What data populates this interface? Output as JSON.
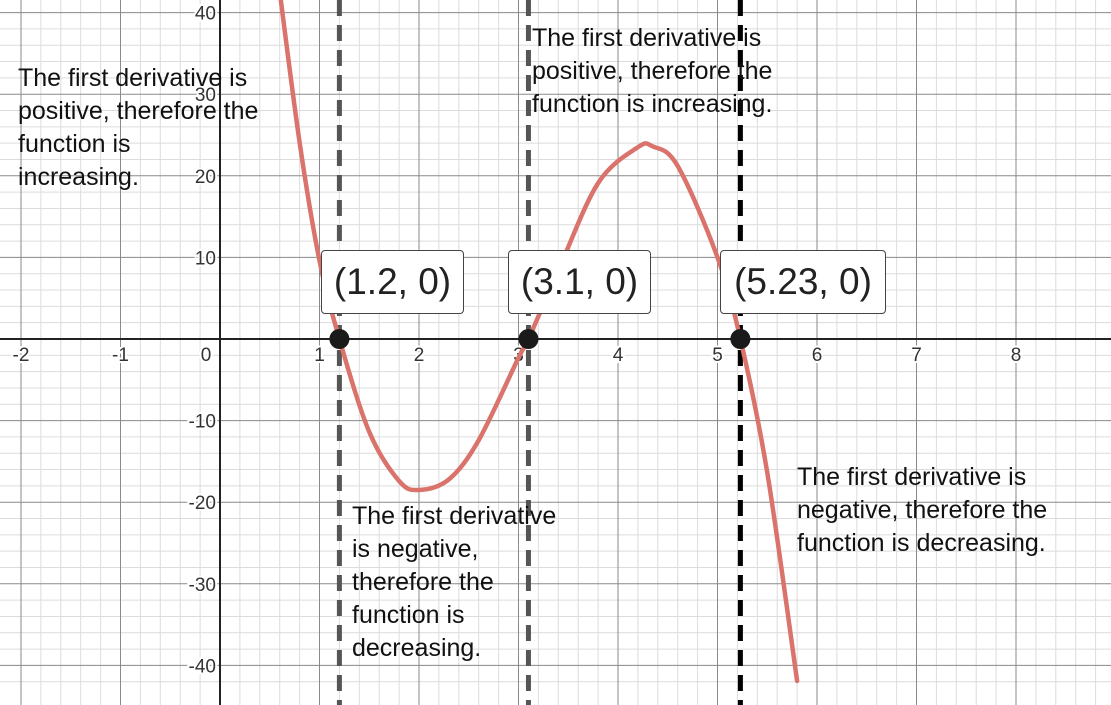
{
  "chart_data": {
    "type": "line",
    "title": "",
    "xlabel": "",
    "ylabel": "",
    "xlim": [
      -2.1,
      8.9
    ],
    "ylim": [
      -43,
      41
    ],
    "x_ticks": [
      "-2",
      "-1",
      "0",
      "1",
      "2",
      "3",
      "4",
      "5",
      "6",
      "7",
      "8"
    ],
    "y_ticks": [
      "40",
      "30",
      "20",
      "10",
      "-10",
      "-20",
      "-30",
      "-40"
    ],
    "grid": true,
    "series": [
      {
        "color": "#d9736c",
        "x": [
          0.6,
          0.8,
          1.0,
          1.2,
          1.5,
          1.8,
          2.0,
          2.3,
          2.6,
          3.0,
          3.1,
          3.4,
          3.8,
          4.2,
          4.35,
          4.6,
          5.0,
          5.23,
          5.5,
          5.8
        ],
        "y": [
          42.6,
          24.1,
          9.6,
          0,
          -11.4,
          -17.4,
          -18.5,
          -17.2,
          -12.4,
          -2.3,
          0,
          8.4,
          19.1,
          23.5,
          23.6,
          21.2,
          10.0,
          0,
          -16.4,
          -41.9
        ]
      }
    ],
    "vertical_lines": [
      {
        "x": 1.2,
        "style": "dashed",
        "color": "#555555"
      },
      {
        "x": 3.1,
        "style": "dashed",
        "color": "#555555"
      },
      {
        "x": 5.23,
        "style": "dashed",
        "color": "#000000"
      }
    ],
    "points": [
      {
        "x": 1.2,
        "y": 0,
        "label": "(1.2, 0)"
      },
      {
        "x": 3.1,
        "y": 0,
        "label": "(3.1, 0)"
      },
      {
        "x": 5.23,
        "y": 0,
        "label": "(5.23, 0)"
      }
    ],
    "annotations": [
      {
        "text": "The first derivative is\npositive, therefore the\nfunction is\nincreasing."
      },
      {
        "text": "The first derivative is\npositive, therefore the\nfunction is increasing."
      },
      {
        "text": "The first derivative\nis negative,\ntherefore the\nfunction is\ndecreasing."
      },
      {
        "text": "The first derivative is\nnegative, therefore the\nfunction is decreasing."
      }
    ]
  }
}
